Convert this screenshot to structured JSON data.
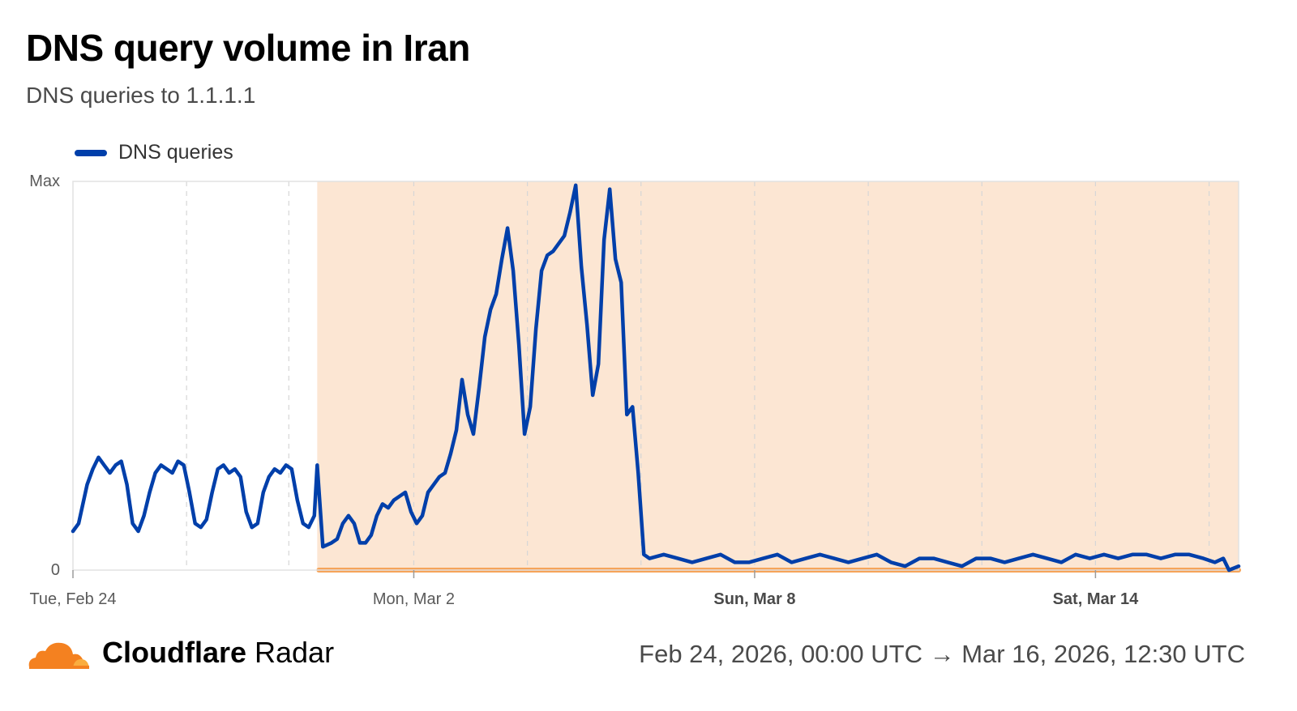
{
  "header": {
    "title": "DNS query volume in Iran",
    "subtitle": "DNS queries to 1.1.1.1"
  },
  "legend": {
    "label": "DNS queries",
    "color": "#003FAA"
  },
  "footer": {
    "brand_bold": "Cloudflare",
    "brand_regular": " Radar",
    "logo_icon": "cloudflare-cloud-icon",
    "range": "Feb 24, 2026, 00:00 UTC → Mar 16, 2026, 12:30 UTC"
  },
  "colors": {
    "line": "#003FAA",
    "highlight_fill": "#FCE6D3",
    "highlight_bar": "#F6A45A",
    "grid": "#d6d6d6",
    "axis": "#cfcfcf"
  },
  "chart_data": {
    "type": "line",
    "title": "DNS query volume in Iran",
    "subtitle": "DNS queries to 1.1.1.1",
    "x_range": [
      "2026-02-24T00:00Z",
      "2026-03-16T12:30Z"
    ],
    "y_tick_labels": [
      "0",
      "Max"
    ],
    "ylim": [
      0,
      1
    ],
    "grid": true,
    "legend_position": "top-left",
    "x_ticks": [
      {
        "label": "Tue, Feb 24",
        "day": 0,
        "bold": false
      },
      {
        "label": "Mon, Mar 2",
        "day": 6,
        "bold": false
      },
      {
        "label": "Sun, Mar 8",
        "day": 12,
        "bold": true
      },
      {
        "label": "Sat, Mar 14",
        "day": 18,
        "bold": true
      }
    ],
    "highlight_period": {
      "start_day": 4.3,
      "end_day": 20.52
    },
    "series": [
      {
        "name": "DNS queries",
        "points": [
          [
            0.0,
            0.1
          ],
          [
            0.1,
            0.12
          ],
          [
            0.25,
            0.22
          ],
          [
            0.35,
            0.26
          ],
          [
            0.45,
            0.29
          ],
          [
            0.55,
            0.27
          ],
          [
            0.65,
            0.25
          ],
          [
            0.75,
            0.27
          ],
          [
            0.85,
            0.28
          ],
          [
            0.95,
            0.22
          ],
          [
            1.05,
            0.12
          ],
          [
            1.15,
            0.1
          ],
          [
            1.25,
            0.14
          ],
          [
            1.35,
            0.2
          ],
          [
            1.45,
            0.25
          ],
          [
            1.55,
            0.27
          ],
          [
            1.65,
            0.26
          ],
          [
            1.75,
            0.25
          ],
          [
            1.85,
            0.28
          ],
          [
            1.95,
            0.27
          ],
          [
            2.05,
            0.2
          ],
          [
            2.15,
            0.12
          ],
          [
            2.25,
            0.11
          ],
          [
            2.35,
            0.13
          ],
          [
            2.45,
            0.2
          ],
          [
            2.55,
            0.26
          ],
          [
            2.65,
            0.27
          ],
          [
            2.75,
            0.25
          ],
          [
            2.85,
            0.26
          ],
          [
            2.95,
            0.24
          ],
          [
            3.05,
            0.15
          ],
          [
            3.15,
            0.11
          ],
          [
            3.25,
            0.12
          ],
          [
            3.35,
            0.2
          ],
          [
            3.45,
            0.24
          ],
          [
            3.55,
            0.26
          ],
          [
            3.65,
            0.25
          ],
          [
            3.75,
            0.27
          ],
          [
            3.85,
            0.26
          ],
          [
            3.95,
            0.18
          ],
          [
            4.05,
            0.12
          ],
          [
            4.15,
            0.11
          ],
          [
            4.25,
            0.14
          ],
          [
            4.3,
            0.27
          ],
          [
            4.4,
            0.06
          ],
          [
            4.55,
            0.07
          ],
          [
            4.65,
            0.08
          ],
          [
            4.75,
            0.12
          ],
          [
            4.85,
            0.14
          ],
          [
            4.95,
            0.12
          ],
          [
            5.05,
            0.07
          ],
          [
            5.15,
            0.07
          ],
          [
            5.25,
            0.09
          ],
          [
            5.35,
            0.14
          ],
          [
            5.45,
            0.17
          ],
          [
            5.55,
            0.16
          ],
          [
            5.65,
            0.18
          ],
          [
            5.75,
            0.19
          ],
          [
            5.85,
            0.2
          ],
          [
            5.95,
            0.15
          ],
          [
            6.05,
            0.12
          ],
          [
            6.15,
            0.14
          ],
          [
            6.25,
            0.2
          ],
          [
            6.35,
            0.22
          ],
          [
            6.45,
            0.24
          ],
          [
            6.55,
            0.25
          ],
          [
            6.65,
            0.3
          ],
          [
            6.75,
            0.36
          ],
          [
            6.85,
            0.49
          ],
          [
            6.95,
            0.4
          ],
          [
            7.05,
            0.35
          ],
          [
            7.15,
            0.47
          ],
          [
            7.25,
            0.6
          ],
          [
            7.35,
            0.67
          ],
          [
            7.45,
            0.71
          ],
          [
            7.55,
            0.8
          ],
          [
            7.65,
            0.88
          ],
          [
            7.75,
            0.77
          ],
          [
            7.85,
            0.58
          ],
          [
            7.95,
            0.35
          ],
          [
            8.05,
            0.42
          ],
          [
            8.15,
            0.62
          ],
          [
            8.25,
            0.77
          ],
          [
            8.35,
            0.81
          ],
          [
            8.45,
            0.82
          ],
          [
            8.55,
            0.84
          ],
          [
            8.65,
            0.86
          ],
          [
            8.75,
            0.92
          ],
          [
            8.85,
            0.99
          ],
          [
            8.95,
            0.78
          ],
          [
            9.05,
            0.63
          ],
          [
            9.15,
            0.45
          ],
          [
            9.25,
            0.53
          ],
          [
            9.35,
            0.85
          ],
          [
            9.45,
            0.98
          ],
          [
            9.55,
            0.8
          ],
          [
            9.65,
            0.74
          ],
          [
            9.75,
            0.4
          ],
          [
            9.85,
            0.42
          ],
          [
            9.95,
            0.25
          ],
          [
            10.05,
            0.04
          ],
          [
            10.15,
            0.03
          ],
          [
            10.4,
            0.04
          ],
          [
            10.65,
            0.03
          ],
          [
            10.9,
            0.02
          ],
          [
            11.15,
            0.03
          ],
          [
            11.4,
            0.04
          ],
          [
            11.65,
            0.02
          ],
          [
            11.9,
            0.02
          ],
          [
            12.15,
            0.03
          ],
          [
            12.4,
            0.04
          ],
          [
            12.65,
            0.02
          ],
          [
            12.9,
            0.03
          ],
          [
            13.15,
            0.04
          ],
          [
            13.4,
            0.03
          ],
          [
            13.65,
            0.02
          ],
          [
            13.9,
            0.03
          ],
          [
            14.15,
            0.04
          ],
          [
            14.4,
            0.02
          ],
          [
            14.65,
            0.01
          ],
          [
            14.9,
            0.03
          ],
          [
            15.15,
            0.03
          ],
          [
            15.4,
            0.02
          ],
          [
            15.65,
            0.01
          ],
          [
            15.9,
            0.03
          ],
          [
            16.15,
            0.03
          ],
          [
            16.4,
            0.02
          ],
          [
            16.65,
            0.03
          ],
          [
            16.9,
            0.04
          ],
          [
            17.15,
            0.03
          ],
          [
            17.4,
            0.02
          ],
          [
            17.65,
            0.04
          ],
          [
            17.9,
            0.03
          ],
          [
            18.15,
            0.04
          ],
          [
            18.4,
            0.03
          ],
          [
            18.65,
            0.04
          ],
          [
            18.9,
            0.04
          ],
          [
            19.15,
            0.03
          ],
          [
            19.4,
            0.04
          ],
          [
            19.65,
            0.04
          ],
          [
            19.9,
            0.03
          ],
          [
            20.1,
            0.02
          ],
          [
            20.25,
            0.03
          ],
          [
            20.35,
            0.0
          ],
          [
            20.52,
            0.01
          ]
        ]
      }
    ]
  }
}
